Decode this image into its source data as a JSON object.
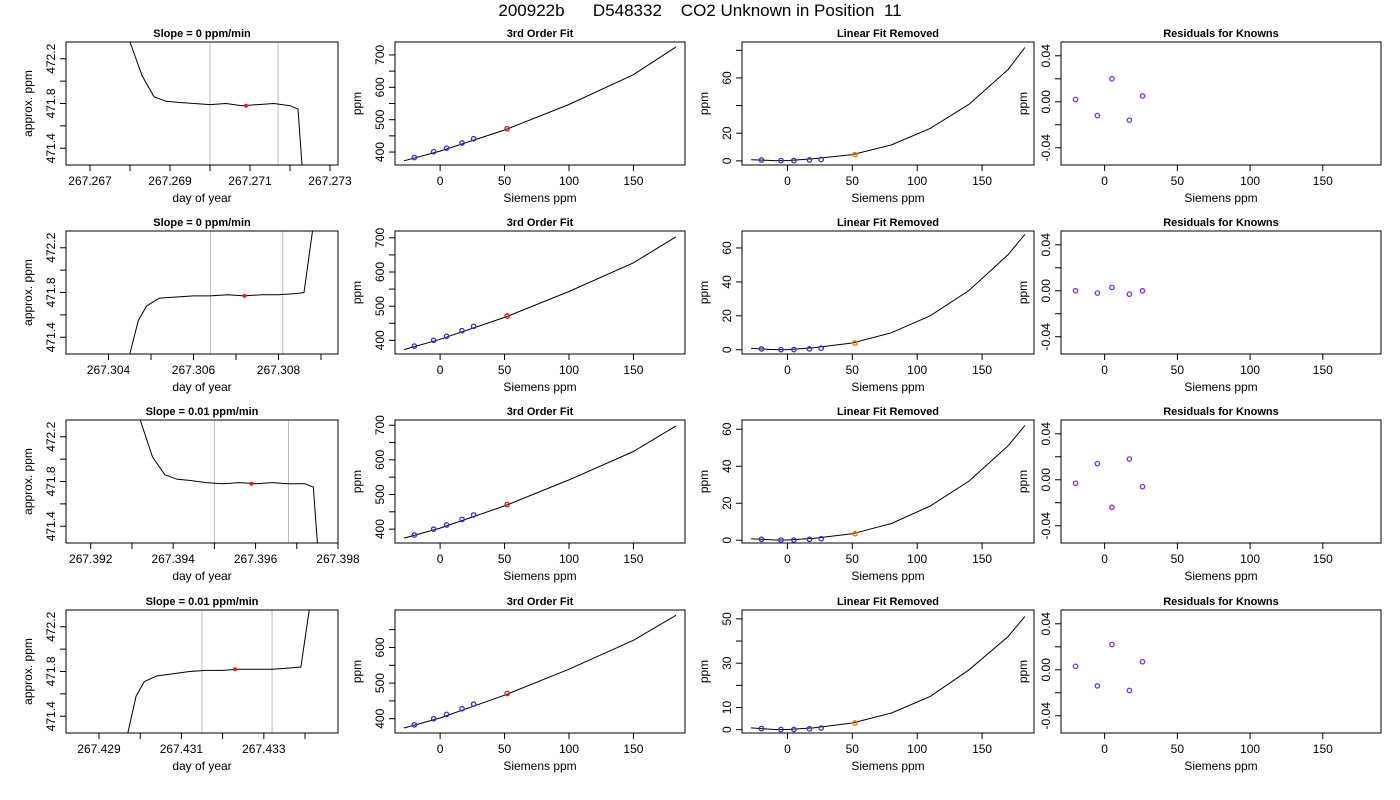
{
  "title": "200922b      D548332    CO2 Unknown in Position  11",
  "chart_data": [
    {
      "type": "line",
      "panel": "time-series",
      "title": "Slope =  0  ppm/min",
      "xlabel": "day of year",
      "ylabel": "approx. ppm",
      "xlim": [
        267.2664,
        267.2732
      ],
      "ylim": [
        471.25,
        472.35
      ],
      "xticks": [
        267.267,
        267.269,
        267.271,
        267.273
      ],
      "xminor": [
        267.268,
        267.27,
        267.272
      ],
      "yticks": [
        471.4,
        471.8,
        472.2
      ],
      "yminor": [
        471.6,
        472.0
      ],
      "vlines": [
        267.27,
        267.2717
      ],
      "x": [
        267.268,
        267.2683,
        267.2686,
        267.2689,
        267.2692,
        267.2696,
        267.27,
        267.2704,
        267.2708,
        267.2712,
        267.2716,
        267.272,
        267.2722,
        267.2723
      ],
      "y": [
        472.35,
        472.05,
        471.86,
        471.82,
        471.81,
        471.8,
        471.79,
        471.8,
        471.78,
        471.79,
        471.8,
        471.78,
        471.75,
        471.25
      ],
      "marker": {
        "x": 267.2709,
        "y": 471.78
      }
    },
    {
      "type": "scatter",
      "panel": "fit",
      "title": "3rd Order Fit",
      "xlabel": "Siemens ppm",
      "ylabel": "ppm",
      "xlim": [
        -35,
        190
      ],
      "ylim": [
        360,
        740
      ],
      "xticks": [
        0,
        50,
        100,
        150
      ],
      "xminor": [],
      "yticks": [
        400,
        500,
        600,
        700
      ],
      "yminor": [
        450,
        550,
        650
      ],
      "curve": {
        "x": [
          -28,
          0,
          50,
          100,
          150,
          183
        ],
        "y": [
          373,
          403,
          468,
          547,
          639,
          725
        ]
      },
      "knowns": {
        "x": [
          -20,
          -5,
          5,
          17,
          26
        ],
        "y": [
          383,
          401,
          412,
          428,
          441
        ]
      },
      "unknown": {
        "x": 52,
        "y": 472
      }
    },
    {
      "type": "scatter",
      "panel": "linear-removed",
      "title": "Linear Fit Removed",
      "xlabel": "Siemens ppm",
      "ylabel": "ppm",
      "xlim": [
        -35,
        190
      ],
      "ylim": [
        -3,
        86
      ],
      "xticks": [
        0,
        50,
        100,
        150
      ],
      "xminor": [],
      "yticks": [
        0,
        20,
        60
      ],
      "yminor": [
        40,
        80
      ],
      "curve": {
        "x": [
          -28,
          -10,
          0,
          20,
          50,
          80,
          110,
          140,
          170,
          183
        ],
        "y": [
          0.8,
          0.2,
          0.2,
          1.5,
          4.5,
          11.5,
          23.5,
          41.0,
          66.0,
          82.0
        ]
      },
      "knowns": {
        "x": [
          -20,
          -5,
          5,
          17,
          26
        ],
        "y": [
          0.6,
          0.2,
          0.2,
          0.6,
          1.0
        ]
      },
      "unknown": {
        "x": 52,
        "y": 4.5
      }
    },
    {
      "type": "scatter",
      "panel": "residuals",
      "title": "Residuals for Knowns",
      "xlabel": "Siemens ppm",
      "ylabel": "ppm",
      "xlim": [
        -30,
        190
      ],
      "ylim": [
        -0.055,
        0.052
      ],
      "xticks": [
        0,
        50,
        100,
        150
      ],
      "xminor": [],
      "yticks": [
        -0.04,
        0.0,
        0.04
      ],
      "yminor": [
        -0.02,
        0.02
      ],
      "knowns": {
        "x": [
          -20,
          -5,
          5,
          17,
          26
        ],
        "y": [
          0.002,
          -0.012,
          0.02,
          -0.016,
          0.005
        ]
      }
    },
    {
      "type": "line",
      "panel": "time-series",
      "title": "Slope =  0  ppm/min",
      "xlabel": "day of year",
      "ylabel": "approx. ppm",
      "xlim": [
        267.303,
        267.3094
      ],
      "ylim": [
        471.25,
        472.35
      ],
      "xticks": [
        267.304,
        267.306,
        267.308
      ],
      "xminor": [
        267.305,
        267.307,
        267.309
      ],
      "yticks": [
        471.4,
        471.8,
        472.2
      ],
      "yminor": [
        471.6,
        472.0
      ],
      "vlines": [
        267.3064,
        267.3081
      ],
      "x": [
        267.3045,
        267.3047,
        267.3049,
        267.3052,
        267.3056,
        267.306,
        267.3064,
        267.3068,
        267.3072,
        267.3076,
        267.308,
        267.3084,
        267.3086,
        267.3088
      ],
      "y": [
        471.25,
        471.55,
        471.68,
        471.75,
        471.76,
        471.77,
        471.77,
        471.78,
        471.77,
        471.78,
        471.78,
        471.79,
        471.8,
        472.35
      ],
      "marker": {
        "x": 267.3072,
        "y": 471.77
      }
    },
    {
      "type": "scatter",
      "panel": "fit",
      "title": "3rd Order Fit",
      "xlabel": "Siemens ppm",
      "ylabel": "ppm",
      "xlim": [
        -35,
        190
      ],
      "ylim": [
        360,
        720
      ],
      "xticks": [
        0,
        50,
        100,
        150
      ],
      "xminor": [],
      "yticks": [
        400,
        500,
        600,
        700
      ],
      "yminor": [
        450,
        550,
        650
      ],
      "curve": {
        "x": [
          -28,
          0,
          50,
          100,
          150,
          183
        ],
        "y": [
          373,
          403,
          467,
          543,
          627,
          703
        ]
      },
      "knowns": {
        "x": [
          -20,
          -5,
          5,
          17,
          26
        ],
        "y": [
          383,
          400,
          412,
          428,
          441
        ]
      },
      "unknown": {
        "x": 52,
        "y": 471
      }
    },
    {
      "type": "scatter",
      "panel": "linear-removed",
      "title": "Linear Fit Removed",
      "xlabel": "Siemens ppm",
      "ylabel": "ppm",
      "xlim": [
        -35,
        190
      ],
      "ylim": [
        -2.5,
        70
      ],
      "xticks": [
        0,
        50,
        100,
        150
      ],
      "xminor": [],
      "yticks": [
        0,
        20,
        40,
        60
      ],
      "yminor": [],
      "curve": {
        "x": [
          -28,
          -10,
          0,
          20,
          50,
          80,
          110,
          140,
          170,
          183
        ],
        "y": [
          0.8,
          0.1,
          0.1,
          1.2,
          4.0,
          10.0,
          20.0,
          35.0,
          56.0,
          68.0
        ]
      },
      "knowns": {
        "x": [
          -20,
          -5,
          5,
          17,
          26
        ],
        "y": [
          0.5,
          0.1,
          0.1,
          0.5,
          0.9
        ]
      },
      "unknown": {
        "x": 52,
        "y": 4.0
      }
    },
    {
      "type": "scatter",
      "panel": "residuals",
      "title": "Residuals for Knowns",
      "xlabel": "Siemens ppm",
      "ylabel": "ppm",
      "xlim": [
        -30,
        190
      ],
      "ylim": [
        -0.055,
        0.052
      ],
      "xticks": [
        0,
        50,
        100,
        150
      ],
      "xminor": [],
      "yticks": [
        -0.04,
        0.0,
        0.04
      ],
      "yminor": [
        -0.02,
        0.02
      ],
      "knowns": {
        "x": [
          -20,
          -5,
          5,
          17,
          26
        ],
        "y": [
          0.0,
          -0.002,
          0.003,
          -0.003,
          0.0
        ]
      }
    },
    {
      "type": "line",
      "panel": "time-series",
      "title": "Slope =  0.01  ppm/min",
      "xlabel": "day of year",
      "ylabel": "approx. ppm",
      "xlim": [
        267.3914,
        267.398
      ],
      "ylim": [
        471.25,
        472.35
      ],
      "xticks": [
        267.392,
        267.394,
        267.396,
        267.398
      ],
      "xminor": [
        267.393,
        267.395,
        267.397
      ],
      "yticks": [
        471.4,
        471.8,
        472.2
      ],
      "yminor": [
        471.6,
        472.0
      ],
      "vlines": [
        267.395,
        267.3968
      ],
      "x": [
        267.3932,
        267.3935,
        267.3938,
        267.3941,
        267.3944,
        267.3948,
        267.3952,
        267.3956,
        267.396,
        267.3964,
        267.3968,
        267.3972,
        267.3974,
        267.3975
      ],
      "y": [
        472.35,
        472.02,
        471.86,
        471.82,
        471.81,
        471.79,
        471.78,
        471.79,
        471.78,
        471.79,
        471.78,
        471.78,
        471.75,
        471.25
      ],
      "marker": {
        "x": 267.3959,
        "y": 471.78
      }
    },
    {
      "type": "scatter",
      "panel": "fit",
      "title": "3rd Order Fit",
      "xlabel": "Siemens ppm",
      "ylabel": "ppm",
      "xlim": [
        -35,
        190
      ],
      "ylim": [
        360,
        715
      ],
      "xticks": [
        0,
        50,
        100,
        150
      ],
      "xminor": [],
      "yticks": [
        400,
        500,
        600,
        700
      ],
      "yminor": [
        450,
        550,
        650
      ],
      "curve": {
        "x": [
          -28,
          0,
          50,
          100,
          150,
          183
        ],
        "y": [
          374,
          403,
          467,
          542,
          624,
          698
        ]
      },
      "knowns": {
        "x": [
          -20,
          -5,
          5,
          17,
          26
        ],
        "y": [
          383,
          400,
          412,
          428,
          441
        ]
      },
      "unknown": {
        "x": 52,
        "y": 471
      }
    },
    {
      "type": "scatter",
      "panel": "linear-removed",
      "title": "Linear Fit Removed",
      "xlabel": "Siemens ppm",
      "ylabel": "ppm",
      "xlim": [
        -35,
        190
      ],
      "ylim": [
        -1.5,
        65
      ],
      "xticks": [
        0,
        50,
        100,
        150
      ],
      "xminor": [],
      "yticks": [
        0,
        20,
        40,
        60
      ],
      "yminor": [],
      "curve": {
        "x": [
          -28,
          -10,
          0,
          20,
          50,
          80,
          110,
          140,
          170,
          183
        ],
        "y": [
          0.8,
          0.1,
          0.1,
          1.0,
          3.5,
          9.0,
          18.5,
          32.0,
          51.0,
          62.0
        ]
      },
      "knowns": {
        "x": [
          -20,
          -5,
          5,
          17,
          26
        ],
        "y": [
          0.5,
          0.1,
          0.1,
          0.5,
          0.8
        ]
      },
      "unknown": {
        "x": 52,
        "y": 3.5
      }
    },
    {
      "type": "scatter",
      "panel": "residuals",
      "title": "Residuals for Knowns",
      "xlabel": "Siemens ppm",
      "ylabel": "ppm",
      "xlim": [
        -30,
        190
      ],
      "ylim": [
        -0.055,
        0.052
      ],
      "xticks": [
        0,
        50,
        100,
        150
      ],
      "xminor": [],
      "yticks": [
        -0.04,
        0.0,
        0.04
      ],
      "yminor": [
        -0.02,
        0.02
      ],
      "knowns": {
        "x": [
          -20,
          -5,
          5,
          17,
          26
        ],
        "y": [
          -0.003,
          0.014,
          -0.024,
          0.018,
          -0.006
        ]
      }
    },
    {
      "type": "line",
      "panel": "time-series",
      "title": "Slope =  0.01  ppm/min",
      "xlabel": "day of year",
      "ylabel": "approx. ppm",
      "xlim": [
        267.4282,
        267.4348
      ],
      "ylim": [
        471.25,
        472.35
      ],
      "xticks": [
        267.429,
        267.431,
        267.433
      ],
      "xminor": [
        267.43,
        267.432,
        267.434
      ],
      "yticks": [
        471.4,
        471.8,
        472.2
      ],
      "yminor": [
        471.6,
        472.0
      ],
      "vlines": [
        267.4315,
        267.4332
      ],
      "x": [
        267.4297,
        267.4299,
        267.4301,
        267.4304,
        267.4308,
        267.4312,
        267.4316,
        267.432,
        267.4324,
        267.4328,
        267.4332,
        267.4336,
        267.4339,
        267.4341
      ],
      "y": [
        471.25,
        471.58,
        471.71,
        471.76,
        471.78,
        471.8,
        471.81,
        471.81,
        471.82,
        471.82,
        471.82,
        471.83,
        471.84,
        472.35
      ],
      "marker": {
        "x": 267.4323,
        "y": 471.82
      }
    },
    {
      "type": "scatter",
      "panel": "fit",
      "title": "3rd Order Fit",
      "xlabel": "Siemens ppm",
      "ylabel": "ppm",
      "xlim": [
        -35,
        190
      ],
      "ylim": [
        360,
        705
      ],
      "xticks": [
        0,
        50,
        100,
        150
      ],
      "xminor": [],
      "yticks": [
        400,
        500,
        600
      ],
      "yminor": [
        450,
        550,
        650
      ],
      "curve": {
        "x": [
          -28,
          0,
          50,
          100,
          150,
          183
        ],
        "y": [
          374,
          402,
          466,
          539,
          620,
          690
        ]
      },
      "knowns": {
        "x": [
          -20,
          -5,
          5,
          17,
          26
        ],
        "y": [
          383,
          400,
          412,
          428,
          441
        ]
      },
      "unknown": {
        "x": 52,
        "y": 471
      }
    },
    {
      "type": "scatter",
      "panel": "linear-removed",
      "title": "Linear Fit Removed",
      "xlabel": "Siemens ppm",
      "ylabel": "ppm",
      "xlim": [
        -35,
        190
      ],
      "ylim": [
        -1.5,
        54
      ],
      "xticks": [
        0,
        50,
        100,
        150
      ],
      "xminor": [],
      "yticks": [
        0,
        10,
        30,
        50
      ],
      "yminor": [
        20,
        40
      ],
      "curve": {
        "x": [
          -28,
          -10,
          0,
          20,
          50,
          80,
          110,
          140,
          170,
          183
        ],
        "y": [
          0.8,
          0.1,
          0.1,
          0.8,
          3.0,
          7.5,
          15.0,
          27.0,
          42.0,
          51.0
        ]
      },
      "knowns": {
        "x": [
          -20,
          -5,
          5,
          17,
          26
        ],
        "y": [
          0.5,
          0.1,
          0.1,
          0.4,
          0.7
        ]
      },
      "unknown": {
        "x": 52,
        "y": 3.0
      }
    },
    {
      "type": "scatter",
      "panel": "residuals",
      "title": "Residuals for Knowns",
      "xlabel": "Siemens ppm",
      "ylabel": "ppm",
      "xlim": [
        -30,
        190
      ],
      "ylim": [
        -0.055,
        0.052
      ],
      "xticks": [
        0,
        50,
        100,
        150
      ],
      "xminor": [],
      "yticks": [
        -0.04,
        0.0,
        0.04
      ],
      "yminor": [
        -0.02,
        0.02
      ],
      "knowns": {
        "x": [
          -20,
          -5,
          5,
          17,
          26
        ],
        "y": [
          0.003,
          -0.014,
          0.022,
          -0.018,
          0.007
        ]
      }
    }
  ],
  "colors": {
    "axis": "#000000",
    "line": "#000000",
    "vline": "#bfbfbf",
    "known_point": "#3b2bd6",
    "unknown_point_fit": "#e02020",
    "unknown_point_removed": "#f07a10",
    "residual_point": "#8a2be2"
  }
}
